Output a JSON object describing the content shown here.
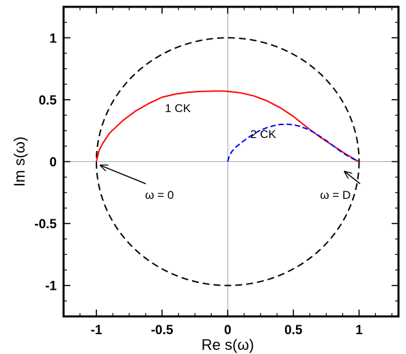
{
  "chart_data": {
    "type": "line",
    "xlabel": "Re s(ω)",
    "ylabel": "Im s(ω)",
    "xlim": [
      -1.25,
      1.3
    ],
    "ylim": [
      -1.25,
      1.25
    ],
    "x_ticks": [
      -1,
      -0.5,
      0,
      0.5,
      1
    ],
    "y_ticks": [
      -1,
      -0.5,
      0,
      0.5,
      1
    ],
    "x_tick_labels": [
      "-1",
      "-0.5",
      "0",
      "0.5",
      "1"
    ],
    "y_tick_labels": [
      "-1",
      "-0.5",
      "0",
      "0.5",
      "1"
    ],
    "reference_lines": {
      "x": 0,
      "y": 0,
      "color": "#888888"
    },
    "reference_circle": {
      "center": [
        0,
        0
      ],
      "radius": 1,
      "style": "dashed",
      "color": "#000000"
    },
    "series": [
      {
        "name": "1 CK",
        "color": "#ff0000",
        "style": "solid",
        "x": [
          -1.0,
          -0.98,
          -0.95,
          -0.9,
          -0.8,
          -0.7,
          -0.6,
          -0.5,
          -0.4,
          -0.3,
          -0.2,
          -0.1,
          -0.05,
          0.0,
          0.1,
          0.2,
          0.3,
          0.4,
          0.5,
          0.6,
          0.7,
          0.8,
          0.9,
          0.95,
          0.98,
          1.0
        ],
        "y": [
          0.0,
          0.09,
          0.15,
          0.23,
          0.33,
          0.41,
          0.47,
          0.52,
          0.545,
          0.56,
          0.567,
          0.57,
          0.57,
          0.568,
          0.555,
          0.53,
          0.49,
          0.435,
          0.365,
          0.28,
          0.2,
          0.13,
          0.06,
          0.03,
          0.01,
          0.0
        ]
      },
      {
        "name": "2 CK",
        "color": "#0000ff",
        "style": "dashed",
        "x": [
          0.0,
          0.01,
          0.03,
          0.06,
          0.1,
          0.15,
          0.2,
          0.25,
          0.3,
          0.35,
          0.4,
          0.45,
          0.5,
          0.55,
          0.6,
          0.65,
          0.7,
          0.75,
          0.8,
          0.85,
          0.9,
          0.95,
          0.98,
          1.0
        ],
        "y": [
          0.0,
          0.04,
          0.08,
          0.115,
          0.15,
          0.19,
          0.225,
          0.255,
          0.275,
          0.29,
          0.3,
          0.302,
          0.298,
          0.285,
          0.265,
          0.24,
          0.205,
          0.17,
          0.13,
          0.09,
          0.055,
          0.025,
          0.008,
          0.0
        ]
      }
    ],
    "annotations": [
      {
        "text": "1 CK",
        "x": -0.38,
        "y": 0.4
      },
      {
        "text": "2 CK",
        "x": 0.27,
        "y": 0.19
      },
      {
        "text": "ω = 0",
        "x": -0.52,
        "y": -0.3,
        "arrow_to": [
          -0.97,
          -0.03
        ]
      },
      {
        "text": "ω = D",
        "x": 0.82,
        "y": -0.3,
        "arrow_to": [
          0.89,
          -0.08
        ]
      }
    ]
  }
}
